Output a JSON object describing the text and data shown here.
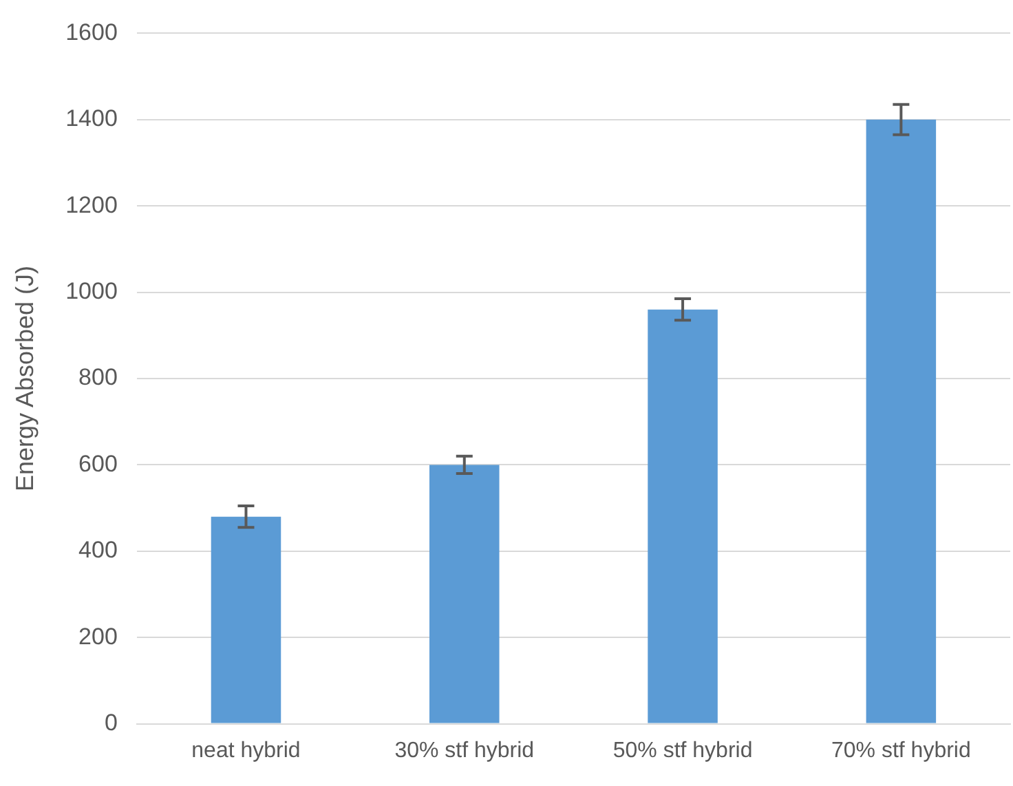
{
  "chart_data": {
    "type": "bar",
    "ylabel": "Energy Absorbed (J)",
    "categories": [
      "neat hybrid",
      "30% stf hybrid",
      "50% stf hybrid",
      "70% stf hybrid"
    ],
    "values": [
      480,
      600,
      960,
      1400
    ],
    "errors": [
      25,
      20,
      25,
      35
    ],
    "color": "#5b9bd5",
    "ylim": [
      0,
      1600
    ],
    "yticks": [
      0,
      200,
      400,
      600,
      800,
      1000,
      1200,
      1400,
      1600
    ],
    "grid": "y",
    "legend": false
  }
}
